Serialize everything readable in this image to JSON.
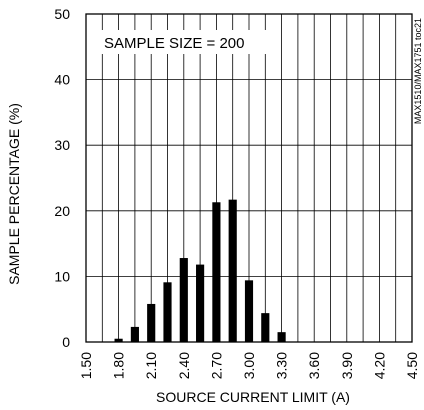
{
  "chart_data": {
    "type": "bar",
    "xlabel": "SOURCE CURRENT LIMIT (A)",
    "ylabel": "SAMPLE PERCENTAGE (%)",
    "annotation": "SAMPLE SIZE = 200",
    "side_note": "MAX1510/MAX1751 toc21",
    "xlim": [
      1.5,
      4.5
    ],
    "ylim": [
      0,
      50
    ],
    "x_ticks": [
      "1.50",
      "1.80",
      "2.10",
      "2.40",
      "2.70",
      "3.00",
      "3.30",
      "3.60",
      "3.90",
      "4.20",
      "4.50"
    ],
    "y_ticks": [
      "0",
      "10",
      "20",
      "30",
      "40",
      "50"
    ],
    "bar_color": "#000000",
    "grid": true,
    "x": [
      1.8,
      1.95,
      2.1,
      2.25,
      2.4,
      2.55,
      2.7,
      2.85,
      3.0,
      3.15,
      3.3
    ],
    "values": [
      0.5,
      2.3,
      5.8,
      9.1,
      12.8,
      11.8,
      21.3,
      21.7,
      9.4,
      4.4,
      1.5
    ]
  }
}
